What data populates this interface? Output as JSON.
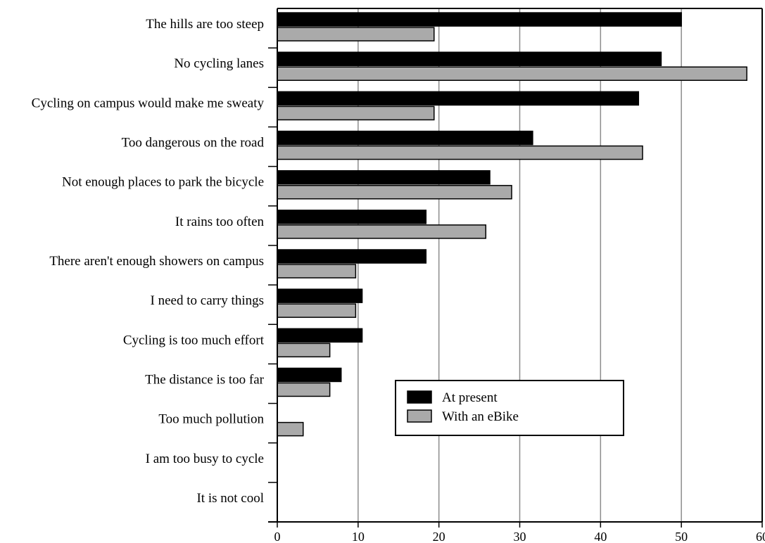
{
  "chart_data": {
    "type": "bar",
    "orientation": "horizontal",
    "categories": [
      "The hills are too steep",
      "No cycling lanes",
      "Cycling on campus would make me sweaty",
      "Too dangerous on the road",
      "Not enough places to park the bicycle",
      "It rains too often",
      "There aren't enough showers on campus",
      "I need to carry things",
      "Cycling is too much effort",
      "The distance is too far",
      "Too much pollution",
      "I am too busy to cycle",
      "It is not cool"
    ],
    "series": [
      {
        "name": "At present",
        "color": "#000000",
        "values": [
          50,
          47.5,
          44.7,
          31.6,
          26.3,
          18.4,
          18.4,
          10.5,
          10.5,
          7.9,
          0,
          0,
          0
        ]
      },
      {
        "name": "With an eBike",
        "color": "#aaaaaa",
        "values": [
          19.4,
          58.1,
          19.4,
          45.2,
          29.0,
          25.8,
          9.7,
          9.7,
          6.5,
          6.5,
          3.2,
          0,
          0
        ]
      }
    ],
    "xlim": [
      0,
      60
    ],
    "xticks": [
      "0",
      "10",
      "20",
      "30",
      "40",
      "50",
      "60"
    ],
    "xlabel": "",
    "ylabel": "",
    "title": "",
    "grid": "vertical",
    "legend_position": "lower-right"
  }
}
